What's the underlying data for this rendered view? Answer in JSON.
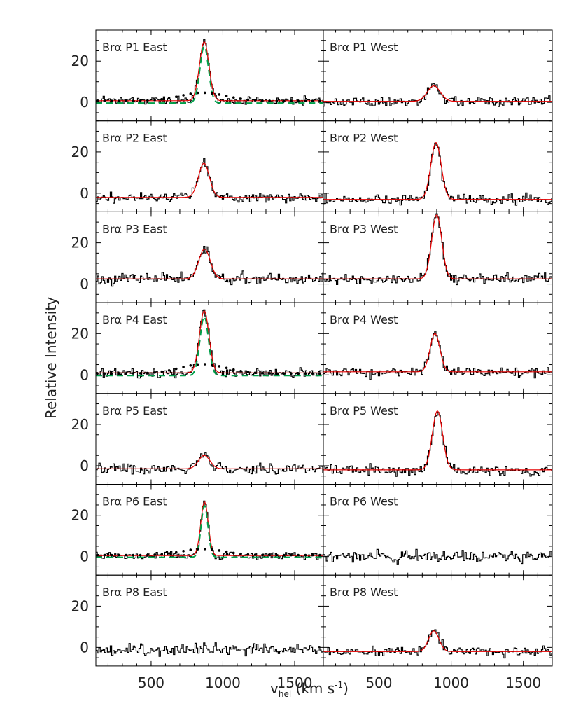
{
  "chart_data": {
    "type": "line",
    "subtype": "spectral-histogram-grid",
    "xlabel_base": "v",
    "xlabel_sub": "hel",
    "xlabel_rest": " (km s",
    "xlabel_sup": "-1",
    "xlabel_close": ")",
    "ylabel": "Relative Intensity",
    "xlim": [
      115,
      1700
    ],
    "ylim": [
      -9,
      35
    ],
    "xticks": [
      500,
      1000,
      1500
    ],
    "yticks": [
      0,
      20
    ],
    "xtick_labels": [
      "500",
      "1000",
      "1500"
    ],
    "ytick_labels": [
      "0",
      "20"
    ],
    "line_prefix": "Brα",
    "colors": {
      "data": "#000000",
      "fit": "#e60000",
      "narrow": "#00a04a",
      "broad": "#000000"
    },
    "panels": [
      {
        "row": 0,
        "col": "East",
        "label": "Brα P1 East",
        "baseline": 0.8,
        "amp": 28.5,
        "center": 870,
        "sigma": 33,
        "noise": 1.4,
        "seed": 11,
        "has_fit": true,
        "components": {
          "narrow_amp": 27.5,
          "narrow_sigma": 30,
          "narrow_base": -0.3,
          "broad_amp": 4.0,
          "broad_center": 862,
          "broad_sigma": 160,
          "broad_base": 0.7
        }
      },
      {
        "row": 0,
        "col": "West",
        "label": "Brα P1 West",
        "baseline": 0.5,
        "amp": 7.5,
        "center": 880,
        "sigma": 45,
        "noise": 1.6,
        "seed": 12,
        "has_fit": true
      },
      {
        "row": 1,
        "col": "East",
        "label": "Brα P2 East",
        "baseline": -2.0,
        "amp": 16.5,
        "center": 868,
        "sigma": 38,
        "noise": 1.6,
        "seed": 21,
        "has_fit": true
      },
      {
        "row": 1,
        "col": "West",
        "label": "Brα P2 West",
        "baseline": -3.0,
        "amp": 27.5,
        "center": 895,
        "sigma": 36,
        "noise": 1.7,
        "seed": 22,
        "has_fit": true
      },
      {
        "row": 2,
        "col": "East",
        "label": "Brα P3 East",
        "baseline": 2.5,
        "amp": 14.5,
        "center": 872,
        "sigma": 40,
        "noise": 1.8,
        "seed": 31,
        "has_fit": true
      },
      {
        "row": 2,
        "col": "West",
        "label": "Brα P3 West",
        "baseline": 2.5,
        "amp": 31.0,
        "center": 900,
        "sigma": 35,
        "noise": 1.8,
        "seed": 32,
        "has_fit": true
      },
      {
        "row": 3,
        "col": "East",
        "label": "Brα P4 East",
        "baseline": 1.0,
        "amp": 30.0,
        "center": 870,
        "sigma": 33,
        "noise": 1.6,
        "seed": 41,
        "has_fit": true,
        "components": {
          "narrow_amp": 28.5,
          "narrow_sigma": 30,
          "narrow_base": -0.3,
          "broad_amp": 4.5,
          "broad_center": 862,
          "broad_sigma": 160,
          "broad_base": 0.7
        }
      },
      {
        "row": 3,
        "col": "West",
        "label": "Brα P4 West",
        "baseline": 1.5,
        "amp": 18.5,
        "center": 888,
        "sigma": 34,
        "noise": 1.7,
        "seed": 42,
        "has_fit": true
      },
      {
        "row": 4,
        "col": "East",
        "label": "Brα P5 East",
        "baseline": -1.5,
        "amp": 6.5,
        "center": 870,
        "sigma": 40,
        "noise": 1.7,
        "seed": 51,
        "has_fit": true
      },
      {
        "row": 4,
        "col": "West",
        "label": "Brα P5 West",
        "baseline": -2.0,
        "amp": 28.5,
        "center": 905,
        "sigma": 36,
        "noise": 1.6,
        "seed": 52,
        "has_fit": true
      },
      {
        "row": 5,
        "col": "East",
        "label": "Brα P6 East",
        "baseline": 0.5,
        "amp": 26.0,
        "center": 872,
        "sigma": 26,
        "noise": 1.4,
        "seed": 61,
        "has_fit": true,
        "components": {
          "narrow_amp": 25.0,
          "narrow_sigma": 24,
          "narrow_base": -0.3,
          "broad_amp": 3.0,
          "broad_center": 862,
          "broad_sigma": 150,
          "broad_base": 0.7
        }
      },
      {
        "row": 5,
        "col": "West",
        "label": "Brα P6 West",
        "baseline": 0.0,
        "amp": 0,
        "center": 880,
        "sigma": 40,
        "noise": 1.8,
        "seed": 62,
        "has_fit": false
      },
      {
        "row": 6,
        "col": "East",
        "label": "Brα P8 East",
        "baseline": -1.0,
        "amp": 0,
        "center": 870,
        "sigma": 40,
        "noise": 1.8,
        "seed": 71,
        "has_fit": false
      },
      {
        "row": 6,
        "col": "West",
        "label": "Brα P8 West",
        "baseline": -2.0,
        "amp": 10.0,
        "center": 880,
        "sigma": 36,
        "noise": 1.5,
        "seed": 72,
        "has_fit": true
      }
    ]
  }
}
